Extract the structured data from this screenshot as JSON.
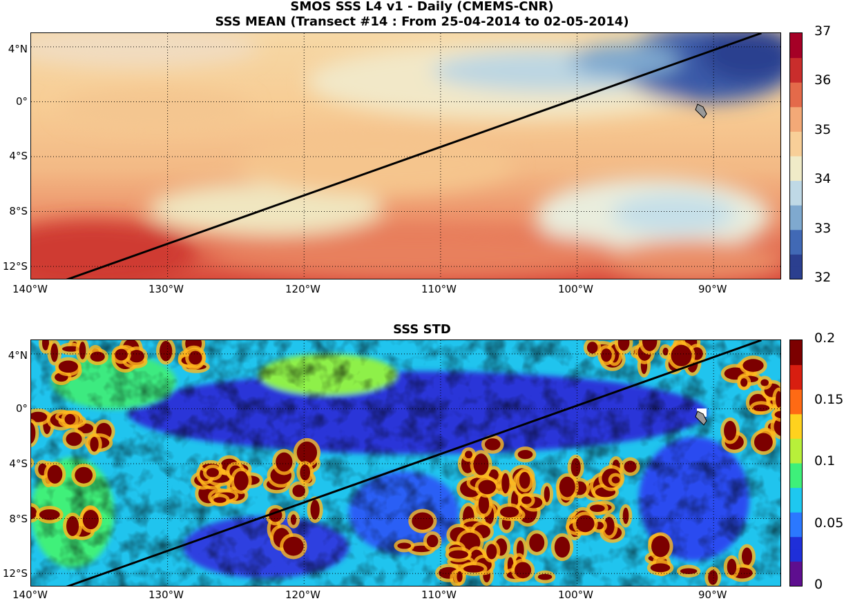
{
  "title": {
    "line1": "SMOS SSS L4 v1 - Daily (CMEMS-CNR)",
    "line2": "SSS MEAN (Transect #14 : From 25-04-2014 to 02-05-2014)"
  },
  "panels": {
    "mean": {
      "title": "",
      "colorbar": [
        "37",
        "36",
        "35",
        "34",
        "33",
        "32"
      ]
    },
    "std": {
      "title": "SSS STD",
      "colorbar": [
        "0.2",
        "0.15",
        "0.1",
        "0.05",
        "0"
      ]
    }
  },
  "axes": {
    "lon_labels": [
      "140°W",
      "130°W",
      "120°W",
      "110°W",
      "100°W",
      "90°W"
    ],
    "lat_labels": [
      "4°N",
      "0°",
      "4°S",
      "8°S",
      "12°S"
    ]
  },
  "map_extent": {
    "lon_min": -140,
    "lon_max": -85,
    "lat_min": -13,
    "lat_max": 5
  },
  "transect": {
    "start": {
      "lon": -137.5,
      "lat": -13
    },
    "end": {
      "lon": -86.5,
      "lat": 5
    }
  },
  "colors": {
    "line": "#000000",
    "grid": "#000000",
    "land": "#999999"
  },
  "colormaps": {
    "mean": [
      "#2b3f8f",
      "#4169b5",
      "#7fa9cf",
      "#bfd9e6",
      "#f0ebc8",
      "#f8cf98",
      "#f3a977",
      "#e46a4a",
      "#c92d2c",
      "#a50026"
    ],
    "std": [
      "#5e0e8f",
      "#1f2fd9",
      "#2b78ff",
      "#1ec8f0",
      "#3ef07a",
      "#b8f03a",
      "#ffd21e",
      "#ff6a14",
      "#d81e10",
      "#7c0000"
    ]
  }
}
